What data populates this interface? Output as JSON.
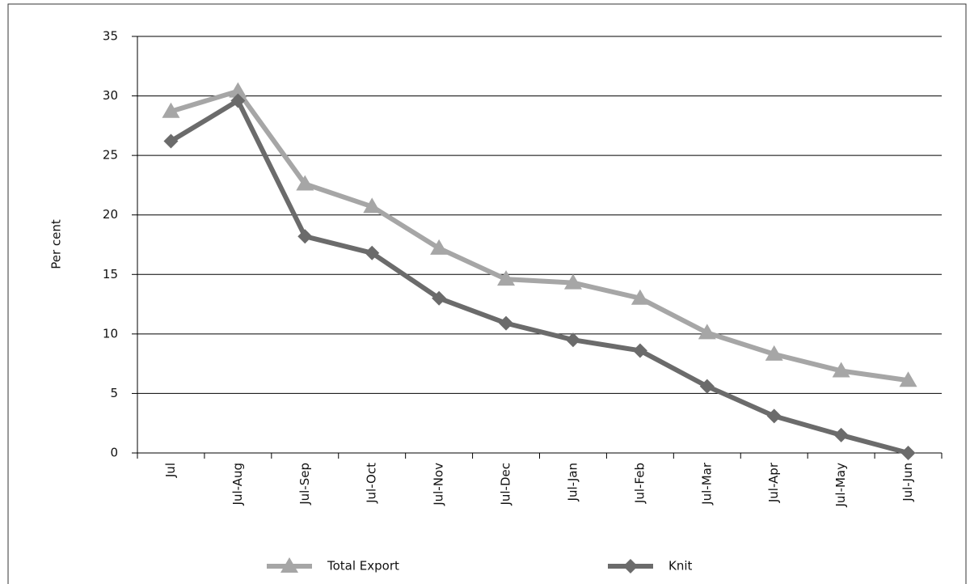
{
  "chart_data": {
    "type": "line",
    "ylabel": "Per cent",
    "categories": [
      "Jul",
      "Jul-Aug",
      "Jul-Sep",
      "Jul-Oct",
      "Jul-Nov",
      "Jul-Dec",
      "Jul-Jan",
      "Jul-Feb",
      "Jul-Mar",
      "Jul-Apr",
      "Jul-May",
      "Jul-Jun"
    ],
    "series": [
      {
        "name": "Total Export",
        "color": "#a6a6a6",
        "marker": "triangle",
        "values": [
          28.7,
          30.4,
          22.6,
          20.7,
          17.2,
          14.6,
          14.3,
          13.0,
          10.1,
          8.3,
          6.9,
          6.1
        ]
      },
      {
        "name": "Knit",
        "color": "#6b6b6b",
        "marker": "diamond",
        "values": [
          26.2,
          29.6,
          18.2,
          16.8,
          13.0,
          10.9,
          9.5,
          8.6,
          5.6,
          3.1,
          1.5,
          0
        ]
      }
    ],
    "ylim": [
      0,
      35
    ],
    "yticks": [
      0,
      5,
      10,
      15,
      20,
      25,
      30,
      35
    ],
    "grid": true,
    "legend_position": "bottom"
  }
}
